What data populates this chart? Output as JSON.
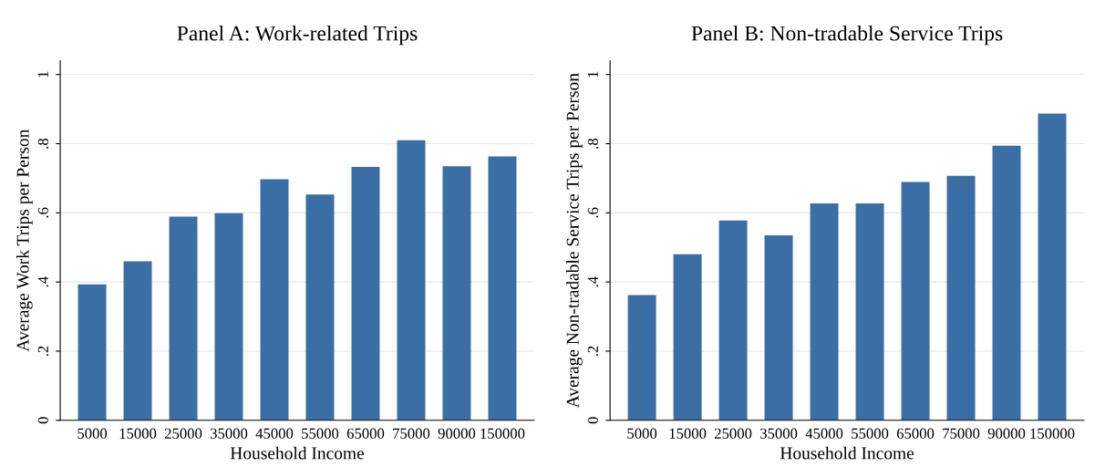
{
  "chart_data": [
    {
      "type": "bar",
      "title": "Panel A: Work-related Trips",
      "xlabel": "Household Income",
      "ylabel": "Average Work Trips per Person",
      "categories": [
        "5000",
        "15000",
        "25000",
        "35000",
        "45000",
        "55000",
        "65000",
        "75000",
        "90000",
        "150000"
      ],
      "values": [
        0.393,
        0.46,
        0.589,
        0.599,
        0.697,
        0.653,
        0.733,
        0.81,
        0.735,
        0.763
      ],
      "color": "#3a6ea5",
      "ylim": [
        0,
        1.04
      ],
      "yticks": [
        {
          "value": 0,
          "label": "0"
        },
        {
          "value": 0.2,
          "label": ".2"
        },
        {
          "value": 0.4,
          "label": ".4"
        },
        {
          "value": 0.6,
          "label": ".6"
        },
        {
          "value": 0.8,
          "label": ".8"
        },
        {
          "value": 1,
          "label": "1"
        }
      ],
      "grid": "y"
    },
    {
      "type": "bar",
      "title": "Panel B: Non-tradable Service Trips",
      "xlabel": "Household Income",
      "ylabel": "Average Non-tradable Service Trips per Person",
      "categories": [
        "5000",
        "15000",
        "25000",
        "35000",
        "45000",
        "55000",
        "65000",
        "75000",
        "90000",
        "150000"
      ],
      "values": [
        0.362,
        0.48,
        0.578,
        0.535,
        0.627,
        0.627,
        0.689,
        0.707,
        0.794,
        0.887
      ],
      "color": "#3a6ea5",
      "ylim": [
        0,
        1.04
      ],
      "yticks": [
        {
          "value": 0,
          "label": "0"
        },
        {
          "value": 0.2,
          "label": ".2"
        },
        {
          "value": 0.4,
          "label": ".4"
        },
        {
          "value": 0.6,
          "label": ".6"
        },
        {
          "value": 0.8,
          "label": ".8"
        },
        {
          "value": 1,
          "label": "1"
        }
      ],
      "grid": "y"
    }
  ]
}
